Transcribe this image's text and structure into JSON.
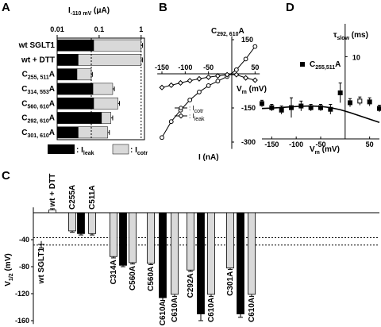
{
  "chart_data": [
    {
      "panel": "A",
      "type": "bar",
      "orientation": "horizontal",
      "stacked": false,
      "xscale": "log",
      "xlim": [
        0.01,
        1.2
      ],
      "xticks": [
        "0.01",
        "0.1",
        "1"
      ],
      "xlabel_main": "I",
      "xlabel_sub": "-110 mV",
      "xlabel_unit": " (μA)",
      "categories": [
        {
          "name": "wt SGLT1",
          "base": "wt SGLT1",
          "sub": ""
        },
        {
          "name": "wt + DTT",
          "base": "wt + DTT",
          "sub": ""
        },
        {
          "name": "C255,511A",
          "base": "C",
          "sub": "255, 511",
          "suffix": "A"
        },
        {
          "name": "C314,553A",
          "base": "C",
          "sub": "314, 553",
          "suffix": "A"
        },
        {
          "name": "C560,610A",
          "base": "C",
          "sub": "560, 610",
          "suffix": "A"
        },
        {
          "name": "C292,610A",
          "base": "C",
          "sub": "292, 610",
          "suffix": "A"
        },
        {
          "name": "C301,610A",
          "base": "C",
          "sub": "301, 610",
          "suffix": "A"
        }
      ],
      "series": [
        {
          "name": "I",
          "name_sub": "leak",
          "color": "#000000",
          "values": [
            0.075,
            0.032,
            0.03,
            0.072,
            0.075,
            0.115,
            0.032
          ]
        },
        {
          "name": "I",
          "name_sub": "cotr",
          "color": "#d9d9d9",
          "values": [
            1.0,
            1.0,
            0.065,
            0.21,
            0.28,
            0.19,
            0.16
          ]
        }
      ],
      "errors": [
        0.08,
        0.08,
        0.004,
        0.02,
        0.025,
        0.02,
        0.015
      ],
      "reference_line": 0.065
    },
    {
      "panel": "B",
      "type": "line",
      "title_base": "C",
      "title_sub": "292, 610",
      "title_suffix": "A",
      "xlabel_base": "V",
      "xlabel_sub": "m",
      "xlabel_unit": " (mV)",
      "ylabel": "I (nA)",
      "xlim": [
        -160,
        60
      ],
      "ylim": [
        -330,
        170
      ],
      "xticks": [
        -150,
        -100,
        -50,
        50
      ],
      "yticks": [
        150,
        -150,
        -300
      ],
      "legend": [
        {
          "marker": "circle",
          "label_base": "I",
          "label_sub": "cotr"
        },
        {
          "marker": "diamond",
          "label_base": "I",
          "label_sub": "leak"
        }
      ],
      "series": [
        {
          "name": "Icotr",
          "x": [
            -150,
            -130,
            -110,
            -90,
            -70,
            -50,
            -30,
            -10,
            10,
            30,
            50
          ],
          "y": [
            -280,
            -210,
            -160,
            -115,
            -80,
            -52,
            -32,
            -12,
            18,
            65,
            120
          ]
        },
        {
          "name": "Ileak",
          "x": [
            -150,
            -130,
            -110,
            -90,
            -70,
            -50,
            -30,
            -10,
            10,
            30,
            50
          ],
          "y": [
            -60,
            -50,
            -40,
            -30,
            -22,
            -15,
            -9,
            -4,
            -4,
            -18,
            -28
          ]
        }
      ]
    },
    {
      "panel": "D",
      "type": "scatter",
      "title_base": "τ",
      "title_sub": "slow",
      "title_unit": " (ms)",
      "legend_base": "C",
      "legend_sub": "255,511",
      "legend_suffix": "A",
      "xlabel_base": "V",
      "xlabel_sub": "m",
      "xlabel_unit": " (mV)",
      "xlim": [
        -170,
        70
      ],
      "ylim": [
        0,
        14
      ],
      "xticks": [
        -150,
        -100,
        -50,
        50
      ],
      "yticks": [
        10
      ],
      "points": {
        "x": [
          -170,
          -150,
          -130,
          -110,
          -90,
          -70,
          -50,
          -30,
          -10,
          10,
          30,
          50,
          70
        ],
        "y": [
          4.3,
          3.8,
          3.5,
          3.8,
          4.0,
          3.8,
          3.8,
          3.6,
          5.6,
          4.4,
          4.6,
          4.5,
          3.7
        ],
        "err": [
          0.4,
          0.4,
          0.5,
          1.2,
          0.6,
          0.4,
          0.4,
          0.6,
          1.2,
          0.5,
          0.5,
          0.5,
          0.4
        ]
      },
      "fit": {
        "x": [
          -170,
          -150,
          -130,
          -110,
          -90,
          -70,
          -50,
          -30,
          -10,
          10,
          30,
          50,
          70
        ],
        "y": [
          3.7,
          3.75,
          3.82,
          3.9,
          3.97,
          4.0,
          3.95,
          3.8,
          3.55,
          3.2,
          2.8,
          2.4,
          2.0
        ]
      }
    },
    {
      "panel": "C",
      "type": "bar",
      "orientation": "vertical",
      "ylabel_base": "V",
      "ylabel_sub": "1/2",
      "ylabel_unit": " (mV)",
      "ylim": [
        -165,
        10
      ],
      "yticks": [
        -40,
        -80,
        -120,
        -160
      ],
      "reference_lines": [
        -37,
        -48
      ],
      "bars": [
        {
          "label": "wt SGLT1",
          "value": -47,
          "err": 5,
          "color": "#ffffff"
        },
        {
          "label": "wt + DTT",
          "value": 4,
          "err": 2,
          "color": "#ffffff"
        },
        {
          "label": "C255A",
          "value": -27,
          "err": 2,
          "color": "#d9d9d9"
        },
        {
          "label": "",
          "value": -31,
          "err": 2,
          "color": "#000000"
        },
        {
          "label": "C511A",
          "value": -31,
          "err": 2,
          "color": "#d9d9d9"
        },
        {
          "label": "C314A",
          "value": -65,
          "err": 2,
          "color": "#d9d9d9"
        },
        {
          "label": "",
          "value": -78,
          "err": 2,
          "color": "#000000"
        },
        {
          "label": "C560A",
          "value": -74,
          "err": 2,
          "color": "#d9d9d9"
        },
        {
          "label": "C560A",
          "value": -75,
          "err": 2,
          "color": "#d9d9d9"
        },
        {
          "label": "C610A",
          "value": -126,
          "err": 4,
          "color": "#000000"
        },
        {
          "label": "C610A",
          "value": -121,
          "err": 3,
          "color": "#d9d9d9"
        },
        {
          "label": "C292A",
          "value": -85,
          "err": 2,
          "color": "#d9d9d9"
        },
        {
          "label": "",
          "value": -150,
          "err": 10,
          "color": "#000000"
        },
        {
          "label": "C610A",
          "value": -121,
          "err": 3,
          "color": "#d9d9d9"
        },
        {
          "label": "C301A",
          "value": -82,
          "err": 2,
          "color": "#d9d9d9"
        },
        {
          "label": "",
          "value": -150,
          "err": 5,
          "color": "#000000"
        },
        {
          "label": "C610A",
          "value": -121,
          "err": 3,
          "color": "#d9d9d9"
        }
      ]
    }
  ],
  "panel_labels": [
    "A",
    "B",
    "C",
    "D"
  ]
}
